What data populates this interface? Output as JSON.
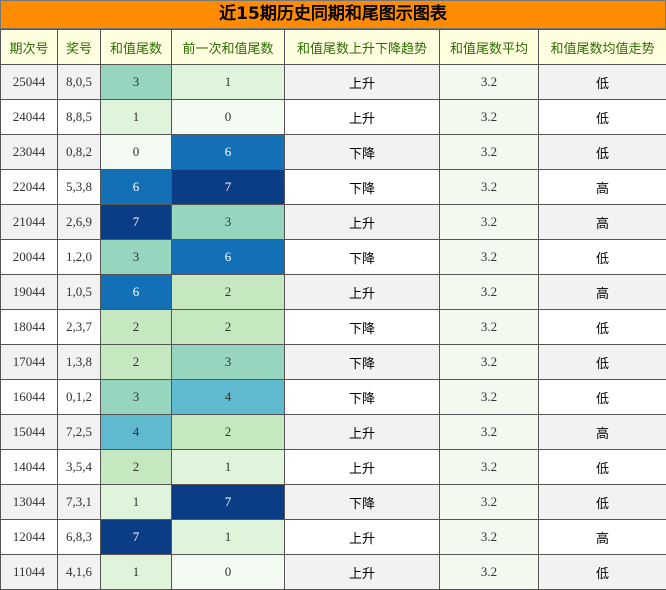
{
  "title": "近15期历史同期和尾图示图表",
  "headers": [
    "期次号",
    "奖号",
    "和值尾数",
    "前一次和值尾数",
    "和值尾数上升下降趋势",
    "和值尾数平均",
    "和值尾数均值走势"
  ],
  "heat_colors": {
    "0": "#f3faf1",
    "1": "#e0f3db",
    "2": "#c6e8c1",
    "3": "#98d5be",
    "4": "#5fbad0",
    "6": "#1370b6",
    "7": "#0b3d87"
  },
  "rows": [
    {
      "period": "25044",
      "numbers": "8,0,5",
      "tail": "3",
      "prev_tail": "1",
      "trend": "上升",
      "avg": "3.2",
      "avg_trend": "低"
    },
    {
      "period": "24044",
      "numbers": "8,8,5",
      "tail": "1",
      "prev_tail": "0",
      "trend": "上升",
      "avg": "3.2",
      "avg_trend": "低"
    },
    {
      "period": "23044",
      "numbers": "0,8,2",
      "tail": "0",
      "prev_tail": "6",
      "trend": "下降",
      "avg": "3.2",
      "avg_trend": "低"
    },
    {
      "period": "22044",
      "numbers": "5,3,8",
      "tail": "6",
      "prev_tail": "7",
      "trend": "下降",
      "avg": "3.2",
      "avg_trend": "高"
    },
    {
      "period": "21044",
      "numbers": "2,6,9",
      "tail": "7",
      "prev_tail": "3",
      "trend": "上升",
      "avg": "3.2",
      "avg_trend": "高"
    },
    {
      "period": "20044",
      "numbers": "1,2,0",
      "tail": "3",
      "prev_tail": "6",
      "trend": "下降",
      "avg": "3.2",
      "avg_trend": "低"
    },
    {
      "period": "19044",
      "numbers": "1,0,5",
      "tail": "6",
      "prev_tail": "2",
      "trend": "上升",
      "avg": "3.2",
      "avg_trend": "高"
    },
    {
      "period": "18044",
      "numbers": "2,3,7",
      "tail": "2",
      "prev_tail": "2",
      "trend": "下降",
      "avg": "3.2",
      "avg_trend": "低"
    },
    {
      "period": "17044",
      "numbers": "1,3,8",
      "tail": "2",
      "prev_tail": "3",
      "trend": "下降",
      "avg": "3.2",
      "avg_trend": "低"
    },
    {
      "period": "16044",
      "numbers": "0,1,2",
      "tail": "3",
      "prev_tail": "4",
      "trend": "下降",
      "avg": "3.2",
      "avg_trend": "低"
    },
    {
      "period": "15044",
      "numbers": "7,2,5",
      "tail": "4",
      "prev_tail": "2",
      "trend": "上升",
      "avg": "3.2",
      "avg_trend": "高"
    },
    {
      "period": "14044",
      "numbers": "3,5,4",
      "tail": "2",
      "prev_tail": "1",
      "trend": "上升",
      "avg": "3.2",
      "avg_trend": "低"
    },
    {
      "period": "13044",
      "numbers": "7,3,1",
      "tail": "1",
      "prev_tail": "7",
      "trend": "下降",
      "avg": "3.2",
      "avg_trend": "低"
    },
    {
      "period": "12044",
      "numbers": "6,8,3",
      "tail": "7",
      "prev_tail": "1",
      "trend": "上升",
      "avg": "3.2",
      "avg_trend": "高"
    },
    {
      "period": "11044",
      "numbers": "4,1,6",
      "tail": "1",
      "prev_tail": "0",
      "trend": "上升",
      "avg": "3.2",
      "avg_trend": "低"
    }
  ]
}
